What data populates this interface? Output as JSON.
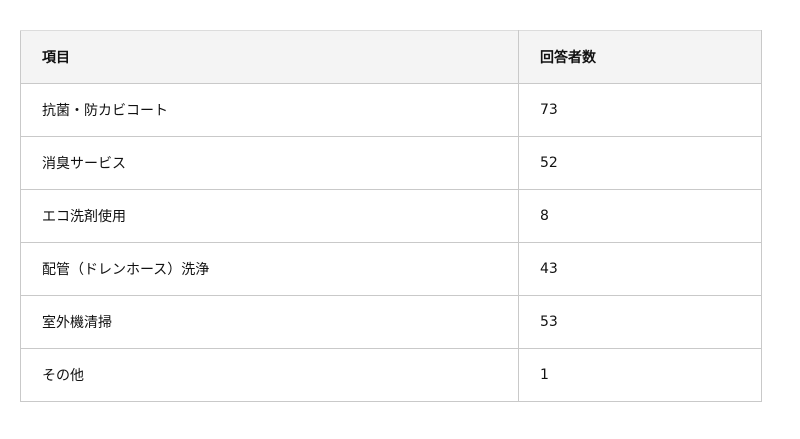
{
  "table": {
    "headers": [
      "項目",
      "回答者数"
    ],
    "rows": [
      {
        "item": "抗菌・防カビコート",
        "count": "73"
      },
      {
        "item": "消臭サービス",
        "count": "52"
      },
      {
        "item": "エコ洗剤使用",
        "count": "8"
      },
      {
        "item": "配管（ドレンホース）洗浄",
        "count": "43"
      },
      {
        "item": "室外機清掃",
        "count": "53"
      },
      {
        "item": "その他",
        "count": "1"
      }
    ]
  }
}
